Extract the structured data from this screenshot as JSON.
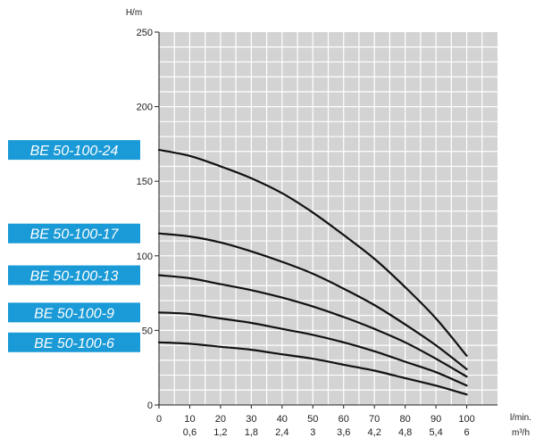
{
  "chart_data": {
    "type": "line",
    "ylabel": "H/m",
    "xlabel_primary": "l/min.",
    "xlabel_secondary": "m³/h",
    "xlim": [
      0,
      110
    ],
    "ylim": [
      0,
      250
    ],
    "grid": true,
    "label_color": "#1a9ad6",
    "plot_background": "#d3d3d3",
    "y_ticks": [
      "0",
      "50",
      "100",
      "150",
      "200",
      "250"
    ],
    "y_tick_values": [
      0,
      50,
      100,
      150,
      200,
      250
    ],
    "x_ticks_primary": [
      "0",
      "10",
      "20",
      "30",
      "40",
      "50",
      "60",
      "70",
      "80",
      "90",
      "100"
    ],
    "x_ticks_secondary": [
      "",
      "0,6",
      "1,2",
      "1,8",
      "2,4",
      "3",
      "3,6",
      "4,2",
      "4,8",
      "5,4",
      "6"
    ],
    "x_tick_values": [
      0,
      10,
      20,
      30,
      40,
      50,
      60,
      70,
      80,
      90,
      100
    ],
    "series": [
      {
        "name": "BE 50-100-24",
        "x": [
          0,
          10,
          20,
          30,
          40,
          50,
          60,
          70,
          80,
          90,
          100
        ],
        "y": [
          171,
          167,
          160,
          152,
          142,
          129,
          114,
          98,
          79,
          58,
          33
        ]
      },
      {
        "name": "BE 50-100-17",
        "x": [
          0,
          10,
          20,
          30,
          40,
          50,
          60,
          70,
          80,
          90,
          100
        ],
        "y": [
          115,
          113,
          109,
          103,
          96,
          88,
          78,
          67,
          54,
          40,
          24
        ]
      },
      {
        "name": "BE 50-100-13",
        "x": [
          0,
          10,
          20,
          30,
          40,
          50,
          60,
          70,
          80,
          90,
          100
        ],
        "y": [
          87,
          85,
          81,
          77,
          72,
          66,
          59,
          51,
          42,
          31,
          19
        ]
      },
      {
        "name": "BE 50-100-9",
        "x": [
          0,
          10,
          20,
          30,
          40,
          50,
          60,
          70,
          80,
          90,
          100
        ],
        "y": [
          62,
          61,
          58,
          55,
          51,
          47,
          42,
          36,
          29,
          22,
          13
        ]
      },
      {
        "name": "BE 50-100-6",
        "x": [
          0,
          10,
          20,
          30,
          40,
          50,
          60,
          70,
          80,
          90,
          100
        ],
        "y": [
          42,
          41,
          39,
          37,
          34,
          31,
          27,
          23,
          18,
          13,
          7
        ]
      }
    ]
  }
}
